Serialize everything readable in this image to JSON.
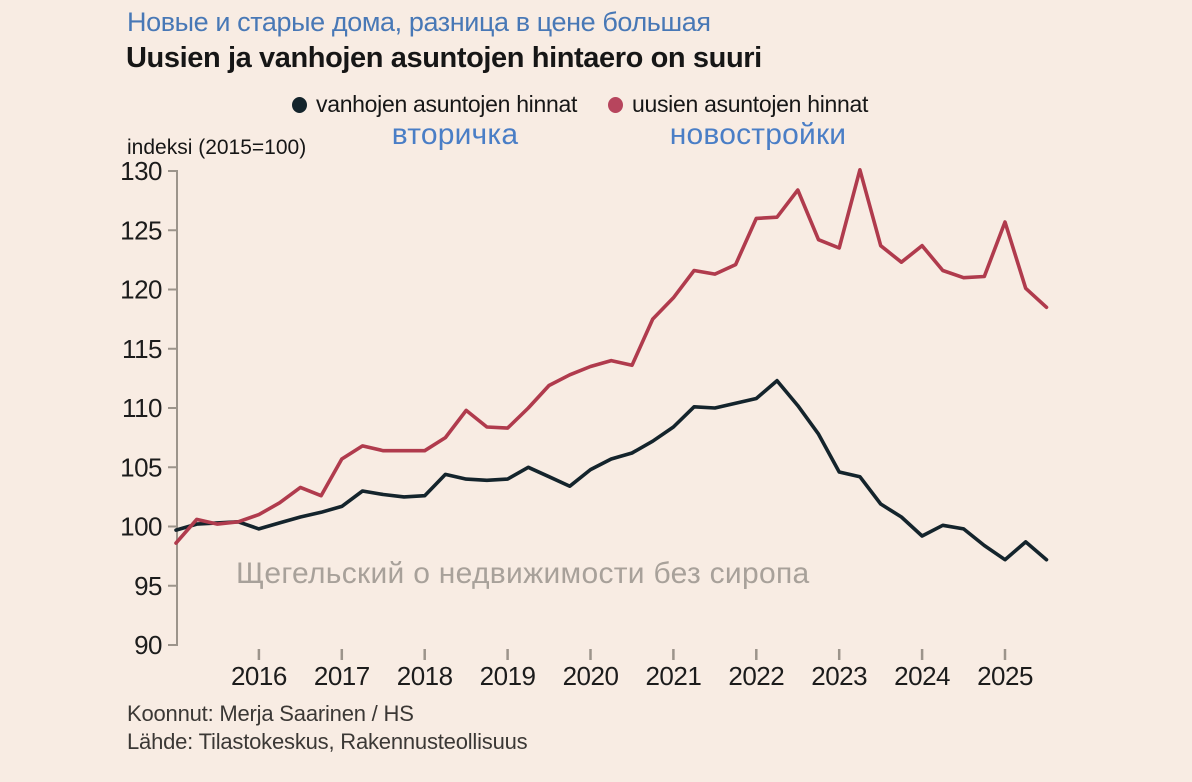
{
  "header": {
    "title_ru": "Новые и старые дома, разница в цене большая",
    "title_fi": "Uusien ja vanhojen asuntojen hintaero on suuri"
  },
  "legend": {
    "items": [
      {
        "label": "vanhojen asuntojen hinnat"
      },
      {
        "label": "uusien asuntojen hinnat"
      }
    ],
    "annotations_ru": [
      {
        "label": "вторичка"
      },
      {
        "label": "новостройки"
      }
    ]
  },
  "axis_note": "indeksi (2015=100)",
  "watermark": "Щегельский о недвижимости без сиропа",
  "footer": {
    "credit": "Koonnut: Merja Saarinen / HS",
    "source": "Lähde: Tilastokeskus, Rakennusteollisuus"
  },
  "colors": {
    "background": "#f8ece3",
    "old_series": "#14242c",
    "new_series": "#b03b4d",
    "new_series_dot": "#b7455d",
    "accent_blue": "#4878b6",
    "annotation_blue": "#4a7ec6",
    "watermark_gray": "#a8a19a",
    "axis_gray": "#9c948b",
    "text_dark": "#1c1c1c",
    "footer_text": "#3b3835"
  },
  "chart_data": {
    "type": "line",
    "title": "Uusien ja vanhojen asuntojen hintaero on suuri",
    "xlabel": "",
    "ylabel": "indeksi (2015=100)",
    "ylim": [
      90,
      130
    ],
    "y_ticks": [
      90,
      95,
      100,
      105,
      110,
      115,
      120,
      125,
      130
    ],
    "x_tick_years": [
      2016,
      2017,
      2018,
      2019,
      2020,
      2021,
      2022,
      2023,
      2024,
      2025
    ],
    "x_interval": "quarter",
    "grid": false,
    "legend_position": "top",
    "x_labels": [
      "2015Q1",
      "2015Q2",
      "2015Q3",
      "2015Q4",
      "2016Q1",
      "2016Q2",
      "2016Q3",
      "2016Q4",
      "2017Q1",
      "2017Q2",
      "2017Q3",
      "2017Q4",
      "2018Q1",
      "2018Q2",
      "2018Q3",
      "2018Q4",
      "2019Q1",
      "2019Q2",
      "2019Q3",
      "2019Q4",
      "2020Q1",
      "2020Q2",
      "2020Q3",
      "2020Q4",
      "2021Q1",
      "2021Q2",
      "2021Q3",
      "2021Q4",
      "2022Q1",
      "2022Q2",
      "2022Q3",
      "2022Q4",
      "2023Q1",
      "2023Q2",
      "2023Q3",
      "2023Q4",
      "2024Q1",
      "2024Q2",
      "2024Q3",
      "2024Q4",
      "2025Q1",
      "2025Q2",
      "2025Q3"
    ],
    "series": [
      {
        "id": "vanhojen",
        "name": "vanhojen asuntojen hinnat",
        "color_key": "old_series",
        "values": [
          99.7,
          100.2,
          100.3,
          100.4,
          99.8,
          100.3,
          100.8,
          101.2,
          101.7,
          103.0,
          102.7,
          102.5,
          102.6,
          104.4,
          104.0,
          103.9,
          104.0,
          105.0,
          104.2,
          103.4,
          104.8,
          105.7,
          106.2,
          107.2,
          108.4,
          110.1,
          110.0,
          110.4,
          110.8,
          112.3,
          110.2,
          107.8,
          104.6,
          104.2,
          101.9,
          100.8,
          99.2,
          100.1,
          99.8,
          98.4,
          97.2,
          98.7,
          97.2
        ]
      },
      {
        "id": "uusien",
        "name": "uusien asuntojen hinnat",
        "color_key": "new_series",
        "values": [
          98.6,
          100.6,
          100.2,
          100.4,
          101.0,
          102.0,
          103.3,
          102.6,
          105.7,
          106.8,
          106.4,
          106.4,
          106.4,
          107.5,
          109.8,
          108.4,
          108.3,
          110.0,
          111.9,
          112.8,
          113.5,
          114.0,
          113.6,
          117.5,
          119.3,
          121.6,
          121.3,
          122.1,
          126.0,
          126.1,
          128.4,
          124.2,
          123.5,
          130.1,
          123.7,
          122.3,
          123.7,
          121.6,
          121.0,
          121.1,
          125.7,
          120.1,
          118.5
        ]
      }
    ]
  }
}
